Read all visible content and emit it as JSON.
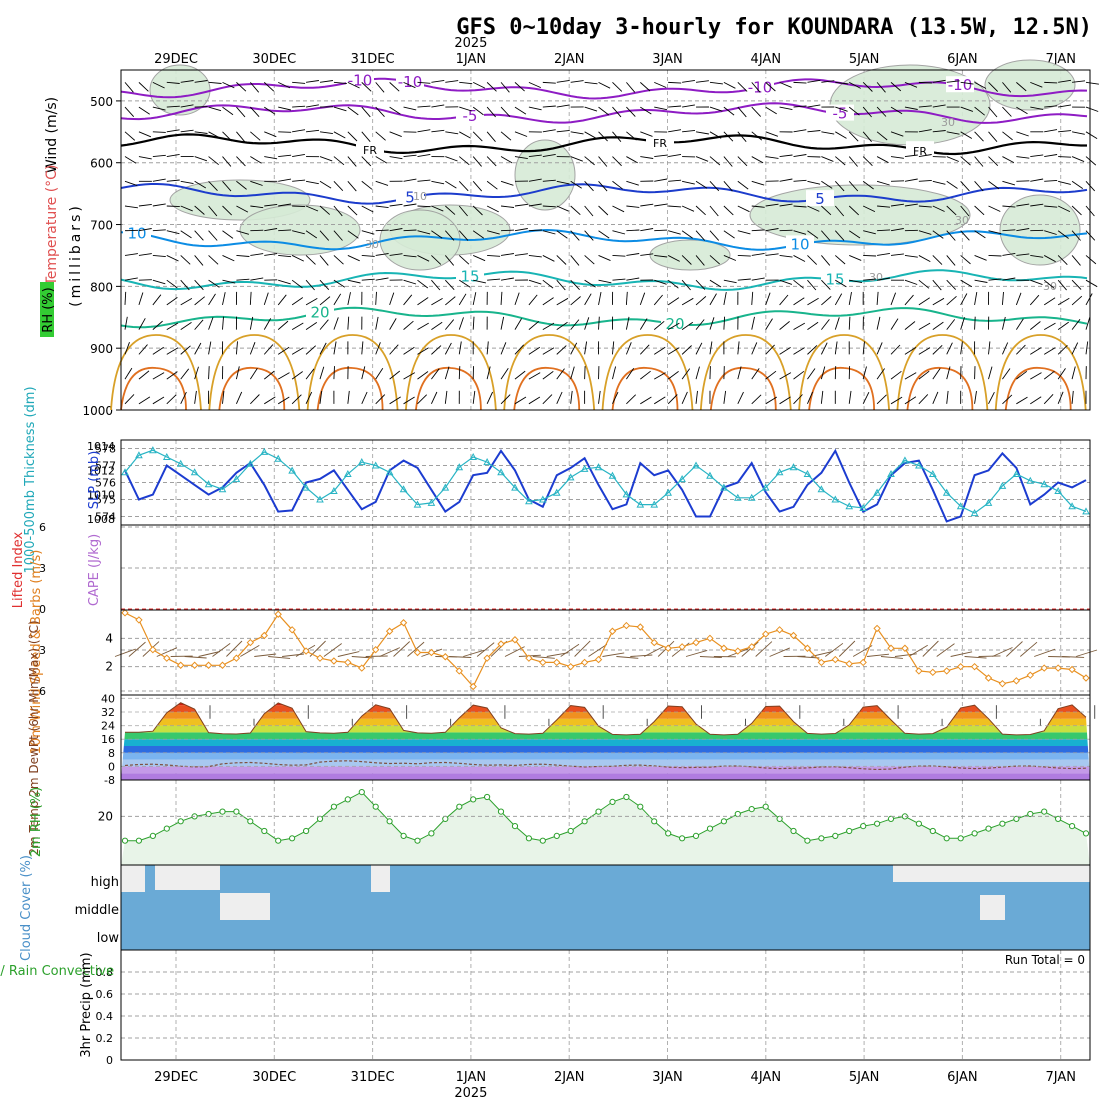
{
  "title": "GFS 0~10day 3-hourly for KOUNDARA (13.5W, 12.5N)",
  "year_label": "2025",
  "days": [
    "29DEC",
    "30DEC",
    "31DEC",
    "1JAN",
    "2JAN",
    "3JAN",
    "4JAN",
    "5JAN",
    "6JAN",
    "7JAN"
  ],
  "colors": {
    "purple": "#8e1cc4",
    "black": "#000000",
    "blue5": "#1c3ccc",
    "cyan10": "#0c8ce4",
    "teal15": "#18b4b4",
    "green20": "#18b48c",
    "orange25": "#d8a028",
    "orange30": "#e07020",
    "slpBlue": "#1c3cd0",
    "thickCyan": "#28b4c4",
    "windOrange": "#e89020",
    "rhGreen": "#2ca02c",
    "cloudBlue": "#6aaad6",
    "liRed": "#e03030"
  },
  "chart_data": [
    {
      "panel": "upper-air",
      "type": "contour",
      "ylabel_wind": "Wind (m/s)",
      "ylabel_temp": "Temperature (°C)",
      "ylabel_rh": "RH (%)",
      "ylabel_units": "(millibars)",
      "y_ticks": [
        "500",
        "600",
        "700",
        "800",
        "900",
        "1000"
      ],
      "ylim": [
        450,
        1000
      ],
      "isotherms": [
        {
          "label": "-10",
          "level": 480,
          "color": "purple"
        },
        {
          "label": "-5",
          "level": 520,
          "color": "purple"
        },
        {
          "label": "FR",
          "level": 570,
          "color": "black"
        },
        {
          "label": "5",
          "level": 650,
          "color": "blue5"
        },
        {
          "label": "10",
          "level": 725,
          "color": "cyan10"
        },
        {
          "label": "15",
          "level": 790,
          "color": "teal15"
        },
        {
          "label": "20",
          "level": 850,
          "color": "green20"
        }
      ],
      "rh_labels": [
        "10",
        "30",
        "30",
        "30",
        "30",
        "30"
      ]
    },
    {
      "panel": "slp-thickness",
      "type": "line",
      "ylabel_left": "1000-500mb Thickness (dm)",
      "ylabel_right": "SLP (mb)",
      "left_ticks": [
        "578",
        "577",
        "576",
        "575",
        "574"
      ],
      "right_ticks": [
        "1014",
        "1012",
        "1010",
        "1008"
      ],
      "slp_range": [
        1007.5,
        1014.5
      ],
      "thickness_range": [
        573.5,
        578.5
      ],
      "series": [
        {
          "name": "SLP",
          "values": [
            1012.0,
            1009.6,
            1010.0,
            1012.4,
            1011.6,
            1010.8,
            1010.0,
            1010.6,
            1011.8,
            1012.6,
            1010.8,
            1008.6,
            1008.7,
            1011.0,
            1011.3,
            1012.0,
            1010.4,
            1008.8,
            1009.4,
            1012.0,
            1012.8,
            1012.2,
            1010.4,
            1008.6,
            1009.4,
            1011.6,
            1011.8,
            1013.6,
            1012.0,
            1009.6,
            1009.0,
            1011.6,
            1012.2,
            1013.0,
            1010.8,
            1008.8,
            1009.2,
            1012.6,
            1011.6,
            1012.0,
            1010.4,
            1008.2,
            1008.2,
            1010.6,
            1011.0,
            1012.6,
            1010.2,
            1008.6,
            1009.0,
            1010.8,
            1011.8,
            1013.6,
            1011.0,
            1008.6,
            1009.2,
            1011.6,
            1012.6,
            1012.8,
            1010.4,
            1007.8,
            1008.2,
            1011.6,
            1012.0,
            1013.4,
            1012.2,
            1009.2,
            1010.0,
            1011.0,
            1010.6,
            1011.2
          ]
        },
        {
          "name": "Thickness",
          "values": [
            576.6,
            577.6,
            577.9,
            577.5,
            577.1,
            576.6,
            575.9,
            575.6,
            576.2,
            577.1,
            577.8,
            577.4,
            576.7,
            575.7,
            575.0,
            575.5,
            576.5,
            577.2,
            577.0,
            576.6,
            575.6,
            574.7,
            574.8,
            575.7,
            576.9,
            577.5,
            577.2,
            576.6,
            575.7,
            574.9,
            575.0,
            575.4,
            576.3,
            576.8,
            576.9,
            576.4,
            575.3,
            574.7,
            574.7,
            575.4,
            576.2,
            577.0,
            576.4,
            575.7,
            575.1,
            575.1,
            575.7,
            576.6,
            576.9,
            576.5,
            575.6,
            575.0,
            574.6,
            574.5,
            575.4,
            576.5,
            577.3,
            577.0,
            576.5,
            575.4,
            574.6,
            574.2,
            574.8,
            575.8,
            576.5,
            576.1,
            575.9,
            575.5,
            574.6,
            574.3
          ]
        }
      ]
    },
    {
      "panel": "li-cape",
      "type": "line",
      "ylabel_left": "Lifted Index",
      "ylabel_right": "CAPE (J/kg)",
      "y_ticks": [
        "6",
        "3",
        "0",
        "3",
        "6"
      ],
      "values": []
    },
    {
      "panel": "wind10m",
      "type": "line",
      "ylabel": "10m Wind Speed & Barbs (m/s)",
      "y_ticks": [
        "4",
        "2"
      ],
      "ylim": [
        0,
        6
      ],
      "values": [
        5.8,
        5.3,
        3.2,
        2.6,
        2.1,
        2.1,
        2.1,
        2.1,
        2.6,
        3.7,
        4.2,
        5.7,
        4.6,
        3.1,
        2.6,
        2.4,
        2.3,
        1.9,
        3.2,
        4.5,
        5.1,
        3.0,
        3.0,
        2.7,
        1.7,
        0.6,
        2.6,
        3.6,
        3.9,
        2.6,
        2.3,
        2.3,
        2.0,
        2.3,
        2.5,
        4.5,
        4.9,
        4.8,
        3.7,
        3.3,
        3.4,
        3.7,
        4.0,
        3.3,
        3.1,
        3.4,
        4.3,
        4.6,
        4.2,
        3.3,
        2.3,
        2.5,
        2.2,
        2.3,
        4.7,
        3.3,
        3.3,
        1.7,
        1.6,
        1.7,
        2.0,
        2.0,
        1.2,
        0.8,
        1.0,
        1.4,
        1.9,
        1.9,
        1.8,
        1.2
      ]
    },
    {
      "panel": "temp2m",
      "type": "area",
      "ylabel": "2m Temp 2m DewPt (6hr Min/Max) (°C)",
      "y_ticks": [
        "40",
        "32",
        "24",
        "16",
        "8",
        "0",
        "-8"
      ],
      "ylim": [
        -8,
        42
      ],
      "temp_max": [
        37.5,
        37.5,
        37.5,
        36.5,
        36.5,
        36.5,
        36.5,
        36.5,
        36.5,
        36.5
      ],
      "temp_min": [
        21,
        20,
        20.5,
        20.5,
        20,
        19.5,
        19.5,
        20,
        20,
        19.5
      ],
      "dewpoint": [
        0.5,
        1.5,
        2.5,
        1.5,
        0.5,
        0.0,
        -0.5,
        -1.0,
        -0.5,
        -0.5
      ]
    },
    {
      "panel": "rh2m",
      "type": "area",
      "ylabel": "2m RH (%)",
      "y_ticks": [
        "20"
      ],
      "ylim": [
        0,
        35
      ],
      "values": [
        10,
        10,
        12,
        15,
        18,
        20,
        21,
        22,
        22,
        18,
        14,
        10,
        11,
        14,
        19,
        24,
        27,
        30,
        24,
        18,
        12,
        10,
        13,
        19,
        24,
        27,
        28,
        22,
        16,
        11,
        10,
        12,
        14,
        18,
        22,
        26,
        28,
        24,
        18,
        13,
        11,
        12,
        15,
        18,
        21,
        23,
        24,
        19,
        14,
        10,
        11,
        12,
        14,
        16,
        17,
        19,
        20,
        17,
        14,
        11,
        11,
        13,
        15,
        17,
        19,
        21,
        22,
        19,
        16,
        13
      ]
    },
    {
      "panel": "cloud",
      "type": "heatmap",
      "ylabel": "Cloud Cover (%)",
      "rows": [
        "high",
        "middle",
        "low"
      ]
    },
    {
      "panel": "precip",
      "type": "bar",
      "ylabel_left": "Total / Rain Convective",
      "ylabel_right": "3hr Precip (mm)",
      "y_ticks": [
        "0.8",
        "0.6",
        "0.4",
        "0.2",
        "0"
      ],
      "ylim": [
        0,
        1
      ],
      "run_total": "Run Total = 0",
      "values": []
    }
  ]
}
